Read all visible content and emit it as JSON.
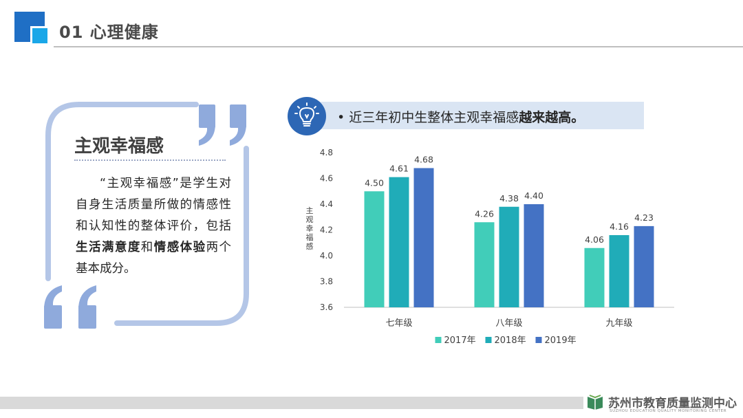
{
  "header": {
    "title": "01 心理健康"
  },
  "card": {
    "heading": "主观幸福感",
    "body_1": "“主观幸福感”是学生对自身生活质量所做的情感性和认知性的整体评价，包括",
    "body_bold_1": "生活满意度",
    "body_2": "和",
    "body_bold_2": "情感体验",
    "body_3": "两个基本成分。"
  },
  "callout": {
    "bullet": "•",
    "text": "近三年初中生整体主观幸福感",
    "emphasis": "越来越高。",
    "icon": "lightbulb-icon"
  },
  "chart_data": {
    "type": "bar",
    "ylabel": "主观幸福感",
    "categories": [
      "七年级",
      "八年级",
      "九年级"
    ],
    "series": [
      {
        "name": "2017年",
        "color": "#41cdb9",
        "values": [
          4.5,
          4.26,
          4.06
        ]
      },
      {
        "name": "2018年",
        "color": "#20acb8",
        "values": [
          4.61,
          4.38,
          4.16
        ]
      },
      {
        "name": "2019年",
        "color": "#4472c4",
        "values": [
          4.68,
          4.4,
          4.23
        ]
      }
    ],
    "ylim": [
      3.6,
      4.8
    ],
    "yticks": [
      "3.6",
      "3.8",
      "4.0",
      "4.2",
      "4.4",
      "4.6",
      "4.8"
    ],
    "legend_position": "bottom",
    "grid": false
  },
  "footer": {
    "org": "苏州市教育质量监测中心",
    "org_en": "SUZHOU EDUCATION QUALITY MONITORING CENTER"
  }
}
